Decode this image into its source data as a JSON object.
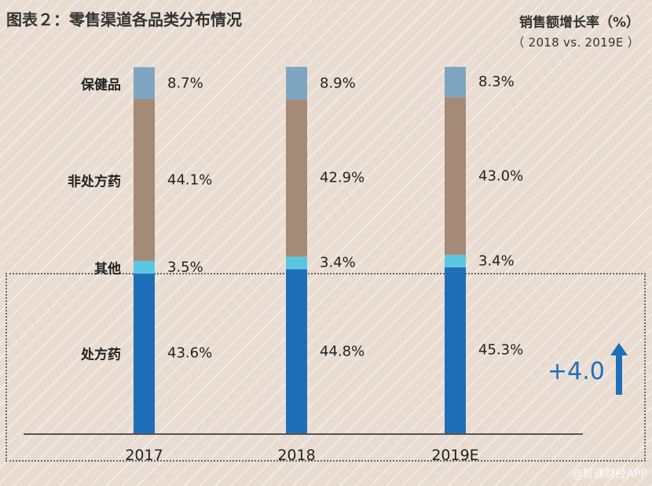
{
  "title": "图表２：零售渠道各品类分布情况",
  "growth_header": {
    "line1": "销售额增长率（%）",
    "line2": "（ 2018 vs. 2019E ）"
  },
  "growth_value": "+4.0",
  "watermark": "@智通财经APP",
  "colors": {
    "处方药": "#1e6fb8",
    "其他": "#5bc8e2",
    "非处方药": "#a58a76",
    "保健品": "#7fa6c0",
    "growth": "#1e6fb8"
  },
  "chart_data": {
    "type": "bar",
    "stacked": true,
    "title": "图表２：零售渠道各品类分布情况",
    "categories": [
      "2017",
      "2018",
      "2019E"
    ],
    "series": [
      {
        "name": "处方药",
        "values": [
          43.6,
          44.8,
          45.3
        ],
        "labels": [
          "43.6%",
          "44.8%",
          "45.3%"
        ]
      },
      {
        "name": "其他",
        "values": [
          3.5,
          3.4,
          3.4
        ],
        "labels": [
          "3.5%",
          "3.4%",
          "3.4%"
        ]
      },
      {
        "name": "非处方药",
        "values": [
          44.1,
          42.9,
          43.0
        ],
        "labels": [
          "44.1%",
          "42.9%",
          "43.0%"
        ]
      },
      {
        "name": "保健品",
        "values": [
          8.7,
          8.9,
          8.3
        ],
        "labels": [
          "8.7%",
          "8.9%",
          "8.3%"
        ]
      }
    ],
    "ylim": [
      0,
      100
    ],
    "grid": false,
    "legend": "left"
  }
}
